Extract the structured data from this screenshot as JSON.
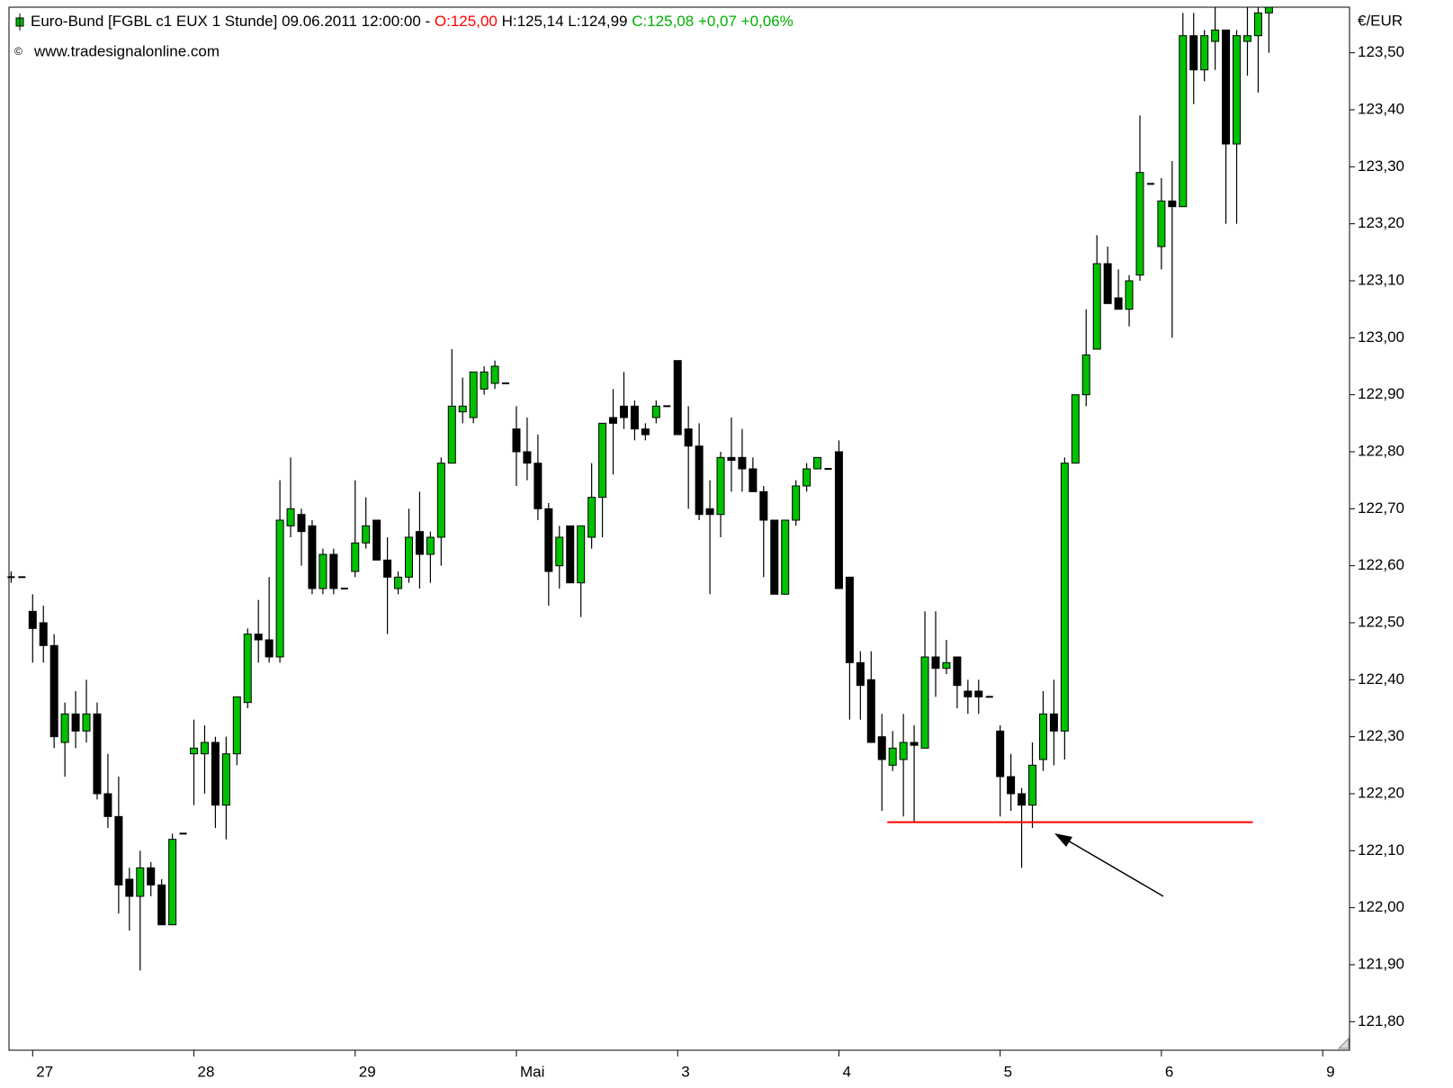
{
  "chart_data": {
    "type": "candlestick",
    "title": "Euro-Bund [FGBL c1 EUX  1 Stunde] 09.06.2011 12:00:00 - ",
    "title_parts": [
      {
        "text": "O:125,00",
        "color": "#ff0000"
      },
      {
        "text": " H:125,14 L:124,99 ",
        "color": "#000000"
      },
      {
        "text": "C:125,08 +0,07 +0,06%",
        "color": "#00b000"
      }
    ],
    "subtitle": "www.tradesignalonline.com",
    "copyright": "©",
    "y_axis_label": "€/EUR",
    "up_color": "#00c000",
    "down_color": "#000000",
    "x": [
      0,
      1,
      2,
      3,
      4,
      5,
      6,
      7,
      8,
      9,
      10,
      11,
      12,
      13,
      14,
      15,
      16,
      17,
      18,
      19,
      20,
      21,
      22,
      23,
      24,
      25,
      26,
      27,
      28,
      29,
      30,
      31,
      32,
      33,
      34,
      35,
      36,
      37,
      38,
      39,
      40,
      41,
      42,
      43,
      44,
      45,
      46,
      47,
      48,
      49,
      50,
      51,
      52,
      53,
      54,
      55,
      56,
      57,
      58,
      59,
      60,
      61,
      62,
      63,
      64,
      65,
      66,
      67,
      68,
      69,
      70,
      71,
      72,
      73,
      74,
      75,
      76,
      77,
      78,
      79,
      80,
      81,
      82,
      83,
      84,
      85,
      86,
      87,
      88,
      89,
      90,
      91,
      92,
      93,
      94,
      95,
      96,
      97,
      98,
      99,
      100,
      101,
      102,
      103,
      104,
      105,
      106,
      107,
      108,
      109,
      110,
      111,
      112,
      113,
      114,
      115,
      116,
      117
    ],
    "open": [
      122.58,
      122.58,
      122.52,
      122.5,
      122.46,
      122.29,
      122.34,
      122.31,
      122.34,
      122.2,
      122.16,
      122.05,
      122.02,
      122.07,
      122.04,
      121.97,
      122.13,
      122.27,
      122.27,
      122.29,
      122.18,
      122.27,
      122.36,
      122.48,
      122.47,
      122.44,
      122.67,
      122.69,
      122.67,
      122.56,
      122.62,
      122.56,
      122.59,
      122.64,
      122.68,
      122.61,
      122.56,
      122.58,
      122.66,
      122.62,
      122.65,
      122.78,
      122.87,
      122.86,
      122.91,
      122.92,
      122.92,
      122.84,
      122.8,
      122.78,
      122.7,
      122.6,
      122.67,
      122.57,
      122.65,
      122.72,
      122.86,
      122.88,
      122.88,
      122.84,
      122.86,
      122.88,
      122.96,
      122.84,
      122.81,
      122.7,
      122.69,
      122.79,
      122.79,
      122.77,
      122.73,
      122.68,
      122.55,
      122.68,
      122.74,
      122.77,
      122.77,
      122.8,
      122.58,
      122.43,
      122.4,
      122.3,
      122.25,
      122.26,
      122.29,
      122.28,
      122.44,
      122.42,
      122.44,
      122.38,
      122.38,
      122.37,
      122.31,
      122.23,
      122.2,
      122.18,
      122.26,
      122.34,
      122.31,
      122.78,
      122.9,
      122.98,
      123.13,
      123.07,
      123.05,
      123.11,
      123.27,
      123.16,
      123.24,
      123.23,
      123.53,
      123.47,
      123.52,
      123.54,
      123.34,
      123.52,
      123.53,
      123.57
    ],
    "high": [
      122.59,
      122.58,
      122.55,
      122.53,
      122.48,
      122.36,
      122.38,
      122.4,
      122.36,
      122.27,
      122.23,
      122.07,
      122.1,
      122.08,
      122.05,
      122.13,
      122.13,
      122.33,
      122.32,
      122.3,
      122.3,
      122.37,
      122.49,
      122.54,
      122.58,
      122.75,
      122.79,
      122.7,
      122.68,
      122.63,
      122.63,
      122.56,
      122.75,
      122.72,
      122.68,
      122.65,
      122.59,
      122.7,
      122.73,
      122.66,
      122.79,
      122.98,
      122.93,
      122.94,
      122.95,
      122.96,
      122.92,
      122.88,
      122.86,
      122.83,
      122.71,
      122.67,
      122.67,
      122.67,
      122.78,
      122.85,
      122.91,
      122.94,
      122.89,
      122.85,
      122.89,
      122.88,
      122.96,
      122.88,
      122.85,
      122.75,
      122.8,
      122.86,
      122.84,
      122.79,
      122.74,
      122.68,
      122.68,
      122.75,
      122.78,
      122.79,
      122.77,
      122.82,
      122.58,
      122.45,
      122.45,
      122.34,
      122.31,
      122.34,
      122.32,
      122.52,
      122.52,
      122.47,
      122.44,
      122.4,
      122.4,
      122.37,
      122.32,
      122.27,
      122.21,
      122.29,
      122.38,
      122.4,
      122.79,
      122.9,
      123.05,
      123.18,
      123.16,
      123.12,
      123.11,
      123.39,
      123.27,
      123.28,
      123.31,
      123.57,
      123.57,
      123.54,
      123.58,
      123.54,
      123.54,
      123.58,
      123.58,
      123.58
    ],
    "low": [
      122.57,
      122.58,
      122.43,
      122.43,
      122.28,
      122.23,
      122.28,
      122.29,
      122.19,
      122.14,
      121.99,
      121.96,
      121.89,
      122.02,
      121.97,
      121.97,
      122.13,
      122.18,
      122.2,
      122.14,
      122.12,
      122.25,
      122.35,
      122.43,
      122.43,
      122.43,
      122.65,
      122.6,
      122.55,
      122.55,
      122.55,
      122.56,
      122.58,
      122.63,
      122.61,
      122.48,
      122.55,
      122.57,
      122.56,
      122.57,
      122.6,
      122.78,
      122.85,
      122.85,
      122.9,
      122.91,
      122.92,
      122.74,
      122.75,
      122.68,
      122.53,
      122.56,
      122.57,
      122.51,
      122.63,
      122.65,
      122.76,
      122.84,
      122.82,
      122.82,
      122.85,
      122.88,
      122.83,
      122.7,
      122.68,
      122.55,
      122.65,
      122.73,
      122.73,
      122.73,
      122.58,
      122.55,
      122.55,
      122.67,
      122.73,
      122.77,
      122.77,
      122.56,
      122.33,
      122.33,
      122.29,
      122.17,
      122.24,
      122.16,
      122.15,
      122.28,
      122.37,
      122.41,
      122.35,
      122.34,
      122.34,
      122.37,
      122.16,
      122.17,
      122.07,
      122.14,
      122.24,
      122.25,
      122.26,
      122.78,
      122.88,
      122.98,
      123.06,
      123.05,
      123.02,
      123.1,
      123.27,
      123.12,
      123.0,
      123.23,
      123.41,
      123.45,
      123.47,
      123.2,
      123.2,
      123.46,
      123.43,
      123.5
    ],
    "close": [
      122.58,
      122.58,
      122.49,
      122.46,
      122.3,
      122.34,
      122.31,
      122.34,
      122.2,
      122.16,
      122.04,
      122.02,
      122.07,
      122.04,
      121.97,
      122.12,
      122.13,
      122.28,
      122.29,
      122.18,
      122.27,
      122.37,
      122.48,
      122.47,
      122.44,
      122.68,
      122.7,
      122.66,
      122.56,
      122.62,
      122.56,
      122.56,
      122.64,
      122.67,
      122.61,
      122.58,
      122.58,
      122.65,
      122.62,
      122.65,
      122.78,
      122.88,
      122.88,
      122.94,
      122.94,
      122.95,
      122.92,
      122.8,
      122.78,
      122.7,
      122.59,
      122.65,
      122.57,
      122.67,
      122.72,
      122.85,
      122.85,
      122.86,
      122.84,
      122.83,
      122.88,
      122.88,
      122.83,
      122.81,
      122.69,
      122.69,
      122.79,
      122.785,
      122.77,
      122.73,
      122.68,
      122.55,
      122.68,
      122.74,
      122.77,
      122.79,
      122.77,
      122.56,
      122.43,
      122.39,
      122.29,
      122.26,
      122.28,
      122.29,
      122.285,
      122.44,
      122.42,
      122.43,
      122.39,
      122.37,
      122.37,
      122.37,
      122.23,
      122.2,
      122.18,
      122.25,
      122.34,
      122.31,
      122.78,
      122.9,
      122.97,
      123.13,
      123.06,
      123.05,
      123.1,
      123.29,
      123.27,
      123.24,
      123.23,
      123.53,
      123.47,
      123.53,
      123.54,
      123.34,
      123.53,
      123.53,
      123.57,
      123.58
    ],
    "xlim": [
      -0.2,
      124.5
    ],
    "xticks": [
      {
        "value": 2,
        "label": "27"
      },
      {
        "value": 17,
        "label": "28"
      },
      {
        "value": 32,
        "label": "29"
      },
      {
        "value": 47,
        "label": "Mai"
      },
      {
        "value": 62,
        "label": "3"
      },
      {
        "value": 77,
        "label": "4"
      },
      {
        "value": 92,
        "label": "5"
      },
      {
        "value": 107,
        "label": "6"
      },
      {
        "value": 122,
        "label": "9"
      }
    ],
    "ylim": [
      121.75,
      123.58
    ],
    "yticks": [
      {
        "value": 121.8,
        "label": "121,80"
      },
      {
        "value": 121.9,
        "label": "121,90"
      },
      {
        "value": 122.0,
        "label": "122,00"
      },
      {
        "value": 122.1,
        "label": "122,10"
      },
      {
        "value": 122.2,
        "label": "122,20"
      },
      {
        "value": 122.3,
        "label": "122,30"
      },
      {
        "value": 122.4,
        "label": "122,40"
      },
      {
        "value": 122.5,
        "label": "122,50"
      },
      {
        "value": 122.6,
        "label": "122,60"
      },
      {
        "value": 122.7,
        "label": "122,70"
      },
      {
        "value": 122.8,
        "label": "122,80"
      },
      {
        "value": 122.9,
        "label": "122,90"
      },
      {
        "value": 123.0,
        "label": "123,00"
      },
      {
        "value": 123.1,
        "label": "123,10"
      },
      {
        "value": 123.2,
        "label": "123,20"
      },
      {
        "value": 123.3,
        "label": "123,30"
      },
      {
        "value": 123.4,
        "label": "123,40"
      },
      {
        "value": 123.5,
        "label": "123,50"
      }
    ],
    "support_line": {
      "y": 122.15,
      "x": [
        81.5,
        115.5
      ],
      "color": "#ff0000"
    },
    "grid": false
  }
}
